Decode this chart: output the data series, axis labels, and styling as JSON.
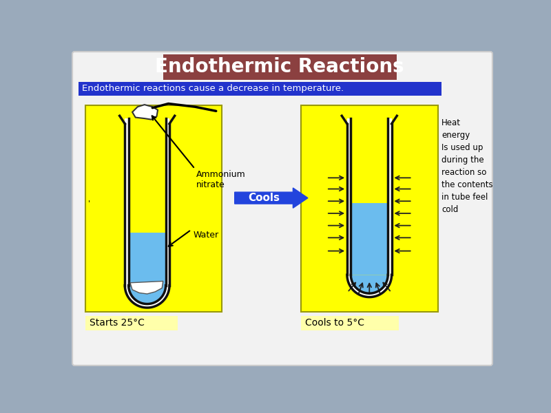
{
  "title": "Endothermic Reactions",
  "title_bg": "#8B4040",
  "title_color": "#FFFFFF",
  "subtitle": "Endothermic reactions cause a decrease in temperature.",
  "subtitle_bg": "#2233CC",
  "subtitle_color": "#FFFFFF",
  "bg_color": "#9AAABB",
  "slide_bg": "#F2F2F2",
  "yellow_bg": "#FFFF00",
  "tube_color": "#111111",
  "water_color": "#6BBCEE",
  "ammonium_label": "Ammonium\nnitrate",
  "water_label": "Water",
  "cools_label": "Cools",
  "arrow_color": "#2244DD",
  "starts_label": "Starts 25°C",
  "cools_to_label": "Cools to 5°C",
  "heat_text": "Heat\nenergy\nIs used up\nduring the\nreaction so\nthe contents\nin tube feel\ncold",
  "starts_bg": "#FFFFAA",
  "cools_to_bg": "#FFFFAA"
}
